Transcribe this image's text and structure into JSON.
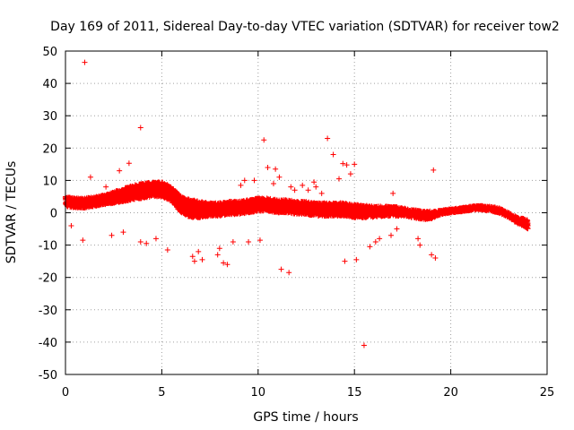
{
  "chart_data": {
    "type": "scatter",
    "title": "Day 169 of 2011, Sidereal Day-to-day VTEC variation (SDTVAR) for receiver tow2",
    "xlabel": "GPS time / hours",
    "ylabel": "SDTVAR / TECUs",
    "xlim": [
      0,
      25
    ],
    "ylim": [
      -50,
      50
    ],
    "xticks": [
      0,
      5,
      10,
      15,
      20,
      25
    ],
    "yticks": [
      -50,
      -40,
      -30,
      -20,
      -10,
      0,
      10,
      20,
      30,
      40,
      50
    ],
    "grid": true,
    "marker": "+",
    "marker_color": "#ff0000",
    "band": {
      "x": [
        0,
        0.5,
        1,
        1.5,
        2,
        2.5,
        3,
        3.5,
        4,
        4.5,
        5,
        5.5,
        6,
        6.5,
        7,
        7.5,
        8,
        8.5,
        9,
        9.5,
        10,
        10.5,
        11,
        11.5,
        12,
        12.5,
        13,
        13.5,
        14,
        14.5,
        15,
        15.5,
        16,
        16.5,
        17,
        17.5,
        18,
        18.5,
        19,
        19.5,
        20,
        20.5,
        21,
        21.5,
        22,
        22.5,
        23,
        23.5,
        24
      ],
      "upper": [
        5,
        4.5,
        4.5,
        5,
        5.5,
        6.5,
        7.5,
        8.5,
        9,
        9.5,
        9.5,
        8,
        5,
        4,
        3.5,
        3,
        3,
        3.5,
        3.5,
        4,
        4.5,
        4.5,
        4,
        4,
        3.5,
        3.5,
        3,
        3,
        3,
        3,
        2.5,
        2.5,
        2,
        2,
        2,
        1.5,
        1,
        0.5,
        0.5,
        0.8,
        1.2,
        1.5,
        2,
        2.2,
        2,
        1.5,
        0,
        -1.5,
        -2
      ],
      "lower": [
        2,
        1.5,
        1.5,
        2,
        2.5,
        3,
        3.5,
        4,
        4.5,
        5,
        5,
        3.5,
        0,
        -1.5,
        -1.5,
        -1,
        -1,
        -0.5,
        -0.5,
        0,
        0.5,
        0.5,
        0,
        0,
        -0.5,
        -0.5,
        -1,
        -1,
        -1,
        -1,
        -1.5,
        -1.5,
        -1.5,
        -1,
        -1,
        -1,
        -1.5,
        -2,
        -2,
        -0.5,
        0,
        0.3,
        0.7,
        1,
        0.5,
        0,
        -1.5,
        -3.5,
        -5
      ]
    },
    "outliers": {
      "x": [
        1.0,
        3.9,
        10.3,
        14.4,
        14.6,
        15.5,
        15.0,
        11.2,
        10.5,
        10.9,
        19.1,
        8.4,
        8.2,
        7.1,
        9.3,
        11.6,
        11.1,
        14.5,
        6.6,
        6.7,
        0.9,
        2.8,
        3.3,
        3.9,
        13.6,
        13.9,
        15.1,
        15.8,
        16.1,
        16.3,
        18.3,
        19.0,
        17.2,
        14.2,
        12.3,
        9.8,
        10.8,
        11.7,
        12.9,
        5.3,
        7.9,
        8.7,
        13.0,
        17.0,
        1.3,
        2.1,
        4.2,
        9.1,
        10.1,
        12.6,
        16.9,
        18.4,
        19.2,
        0.3,
        14.8,
        13.3,
        11.9,
        9.5,
        8.0,
        6.9,
        4.7,
        3.0,
        2.4,
        1.6
      ],
      "y": [
        46.5,
        26.3,
        22.5,
        15.2,
        14.8,
        -41,
        15.0,
        -17.5,
        14.0,
        13.5,
        13.2,
        -16,
        -15.5,
        -14.5,
        10,
        -18.5,
        11,
        -15,
        -13.5,
        -15,
        -8.5,
        13,
        15.3,
        -9,
        23,
        18,
        -14.5,
        -10.5,
        -9,
        -8,
        -8,
        -13,
        -5,
        10.5,
        8.5,
        10,
        9,
        8,
        9.5,
        -11.5,
        -13,
        -9,
        8,
        6,
        11,
        8,
        -9.5,
        8.5,
        -8.5,
        7,
        -7,
        -10,
        -14,
        -4,
        12,
        6,
        7,
        -9,
        -11,
        -12,
        -8,
        -6,
        -7,
        5
      ]
    }
  }
}
